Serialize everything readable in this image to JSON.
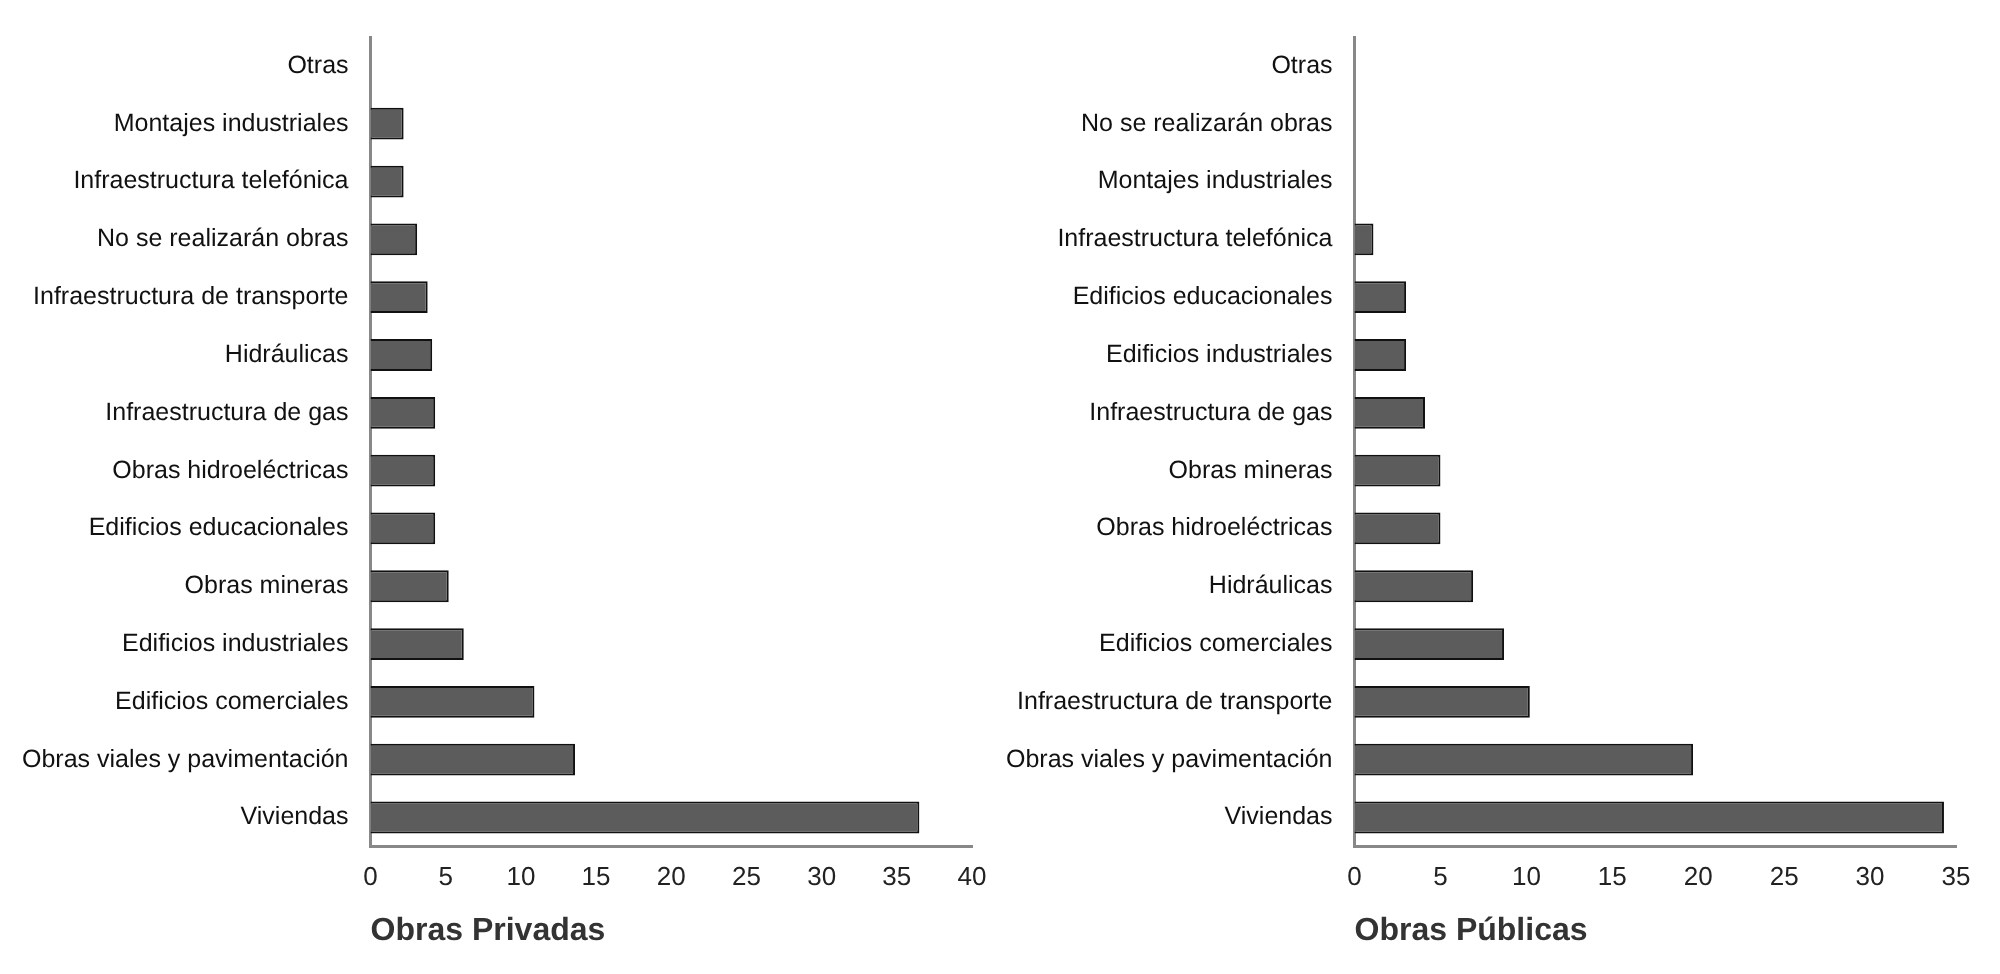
{
  "chart_data": [
    {
      "type": "bar",
      "orientation": "horizontal",
      "xlabel": "Obras Privadas",
      "categories": [
        "Otras",
        "Montajes industriales",
        "Infraestructura telefónica",
        "No se realizarán obras",
        "Infraestructura de transporte",
        "Hidráulicas",
        "Infraestructura de gas",
        "Obras hidroeléctricas",
        "Edificios educacionales",
        "Obras mineras",
        "Edificios industriales",
        "Edificios comerciales",
        "Obras viales y pavimentación",
        "Viviendas"
      ],
      "values": [
        0,
        2.2,
        2.2,
        3.1,
        3.8,
        4.1,
        4.3,
        4.3,
        4.3,
        5.2,
        6.2,
        10.9,
        13.6,
        36.5
      ],
      "color": "#5c5c5c",
      "xlim": [
        0,
        40
      ],
      "xticks": [
        0,
        5,
        10,
        15,
        20,
        25,
        30,
        35,
        40
      ],
      "grid": false,
      "legend": false
    },
    {
      "type": "bar",
      "orientation": "horizontal",
      "xlabel": "Obras Públicas",
      "categories": [
        "Otras",
        "No se realizarán obras",
        "Montajes industriales",
        "Infraestructura telefónica",
        "Edificios educacionales",
        "Edificios industriales",
        "Infraestructura de gas",
        "Obras mineras",
        "Obras hidroeléctricas",
        "Hidráulicas",
        "Edificios comerciales",
        "Infraestructura de transporte",
        "Obras viales y pavimentación",
        "Viviendas"
      ],
      "values": [
        0,
        0,
        0,
        1.1,
        3.0,
        3.0,
        4.1,
        5.0,
        5.0,
        6.9,
        8.7,
        10.2,
        19.7,
        34.3
      ],
      "color": "#5c5c5c",
      "xlim": [
        0,
        35
      ],
      "xticks": [
        0,
        5,
        10,
        15,
        20,
        25,
        30,
        35
      ],
      "grid": false,
      "legend": false
    }
  ]
}
